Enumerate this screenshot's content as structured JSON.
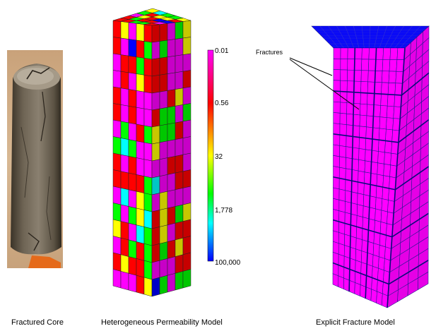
{
  "panels": {
    "core": {
      "caption": "Fractured Core"
    },
    "permeability": {
      "caption": "Heterogeneous Permeability Model"
    },
    "fracture": {
      "caption": "Explicit Fracture Model"
    }
  },
  "colorbar": {
    "ticks": [
      "0.01",
      "0.56",
      "32",
      "1,778",
      "100,000"
    ],
    "colors": [
      "#ff00ff",
      "#ff0000",
      "#ffff00",
      "#00ff00",
      "#00ffff",
      "#0000ff"
    ]
  },
  "annotation": {
    "label": "Fractures"
  },
  "colors": {
    "fracture_face": "#ff00ff",
    "fracture_top": "#0000ff",
    "grid_line": "#1a1a8c"
  }
}
